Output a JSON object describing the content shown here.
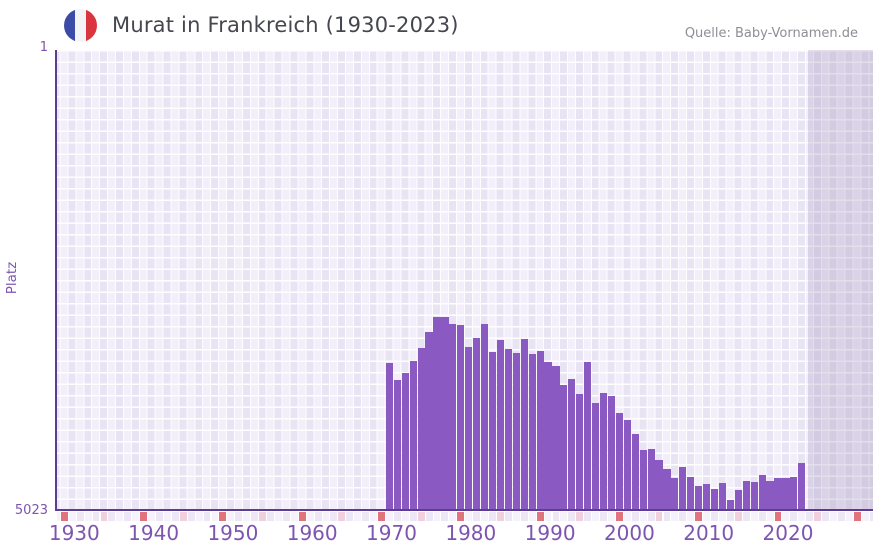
{
  "header": {
    "title": "Murat in Frankreich (1930-2023)",
    "flag_icon": "france-flag",
    "source": "Quelle: Baby-Vornamen.de"
  },
  "chart_data": {
    "type": "bar",
    "title": "Murat in Frankreich (1930-2023)",
    "xlabel": "",
    "ylabel": "Platz",
    "y_axis": {
      "top_tick_label": "1",
      "bottom_tick_label": "5023",
      "min": 1,
      "max": 5023,
      "inverted": true,
      "note": "rank 1 at top"
    },
    "x_axis": {
      "tick_labels": [
        "1930",
        "1940",
        "1950",
        "1960",
        "1970",
        "1980",
        "1990",
        "2000",
        "2010",
        "2020"
      ],
      "domain_years": [
        1929,
        2032
      ]
    },
    "grid": "on",
    "legend": "none",
    "series": [
      {
        "name": "Platz",
        "x": [
          1971,
          1972,
          1973,
          1974,
          1975,
          1976,
          1977,
          1978,
          1979,
          1980,
          1981,
          1982,
          1983,
          1984,
          1985,
          1986,
          1987,
          1988,
          1989,
          1990,
          1991,
          1992,
          1993,
          1994,
          1995,
          1996,
          1997,
          1998,
          1999,
          2000,
          2001,
          2002,
          2003,
          2004,
          2005,
          2006,
          2007,
          2008,
          2009,
          2010,
          2011,
          2012,
          2013,
          2014,
          2015,
          2016,
          2017,
          2018,
          2019,
          2020,
          2021,
          2022,
          2023
        ],
        "values": [
          3418,
          3604,
          3532,
          3396,
          3254,
          3079,
          2916,
          2916,
          2992,
          3003,
          3243,
          3145,
          2992,
          3298,
          3167,
          3265,
          3309,
          3156,
          3320,
          3287,
          3407,
          3455,
          3658,
          3596,
          3760,
          3404,
          3858,
          3749,
          3778,
          3967,
          4040,
          4193,
          4368,
          4360,
          4477,
          4578,
          4677,
          4550,
          4659,
          4761,
          4739,
          4797,
          4725,
          4914,
          4804,
          4703,
          4714,
          4641,
          4703,
          4677,
          4677,
          4666,
          4513
        ]
      }
    ],
    "markers": {
      "decade_years": [
        1930,
        1940,
        1950,
        1960,
        1970,
        1980,
        1990,
        2000,
        2010,
        2020,
        2030
      ],
      "half_decade_years": [
        1935,
        1945,
        1955,
        1965,
        1975,
        1985,
        1995,
        2005,
        2015,
        2025
      ]
    },
    "future_region_start_year": 2024,
    "colors": {
      "bar": "#8a5ac2",
      "axis_line": "#5c3d96",
      "tick_label": "#7d55b0",
      "plot_bg": "#f2eefa",
      "plot_bg_alt": "#e9e4f4",
      "future_band": "rgba(142,125,170,0.24)",
      "decade_marker": "#e0737c",
      "half_decade_marker": "#f0d0dc",
      "strip_cell": "#f6f2fb",
      "strip_cell_alt": "#ece6f5",
      "title": "#45464e",
      "source": "#8e8e96",
      "flag_blue": "#3c4ba5",
      "flag_white": "#f4f4f6",
      "flag_red": "#d8353f"
    }
  }
}
